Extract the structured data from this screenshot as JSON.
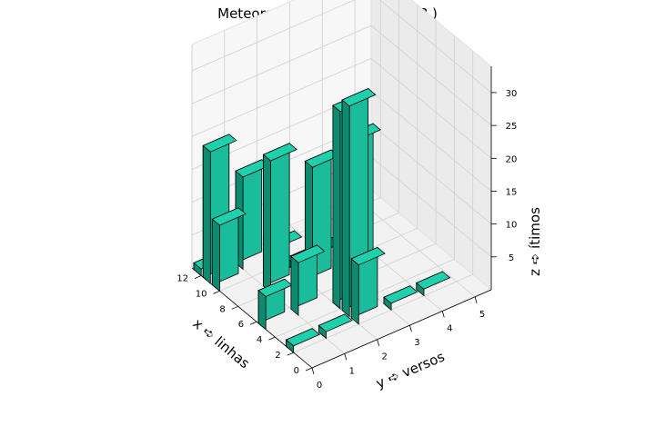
{
  "chart_data": {
    "type": "bar3d",
    "title": "Meteoro ➪ 13 ➪ 282 ( 43 / 348 )",
    "xlabel": "x ➪ linhas",
    "ylabel": "y ➪ versos",
    "zlabel": "z ➪ ítimos",
    "x_ticks": [
      "0",
      "2",
      "4",
      "6",
      "8",
      "10",
      "12"
    ],
    "y_ticks": [
      "0",
      "1",
      "2",
      "3",
      "4",
      "5"
    ],
    "z_ticks": [
      "5",
      "10",
      "15",
      "20",
      "25",
      "30"
    ],
    "xlim": [
      0,
      13
    ],
    "ylim": [
      0,
      5.5
    ],
    "zlim": [
      0,
      34
    ],
    "grid": true,
    "bar_color": "#1abc9c",
    "edge_color": "#000000",
    "bars": [
      {
        "x": 2,
        "y": 0,
        "z": 1
      },
      {
        "x": 2,
        "y": 1,
        "z": 1
      },
      {
        "x": 2,
        "y": 2,
        "z": 9
      },
      {
        "x": 2,
        "y": 3,
        "z": 1
      },
      {
        "x": 2,
        "y": 4,
        "z": 1
      },
      {
        "x": 3,
        "y": 2,
        "z": 32
      },
      {
        "x": 4,
        "y": 2,
        "z": 30
      },
      {
        "x": 5,
        "y": 0,
        "z": 5
      },
      {
        "x": 5,
        "y": 1,
        "z": 8
      },
      {
        "x": 6,
        "y": 3,
        "z": 21
      },
      {
        "x": 7,
        "y": 2,
        "z": 18
      },
      {
        "x": 7,
        "y": 3,
        "z": 13
      },
      {
        "x": 8,
        "y": 1,
        "z": 20
      },
      {
        "x": 8,
        "y": 2,
        "z": 1
      },
      {
        "x": 9,
        "y": 2,
        "z": 1
      },
      {
        "x": 9,
        "y": 3,
        "z": 1
      },
      {
        "x": 10,
        "y": 0,
        "z": 10
      },
      {
        "x": 11,
        "y": 0,
        "z": 20
      },
      {
        "x": 11,
        "y": 1,
        "z": 14
      },
      {
        "x": 11,
        "y": 2,
        "z": 1
      },
      {
        "x": 11,
        "y": 4,
        "z": 15
      },
      {
        "x": 12,
        "y": 0,
        "z": 1
      },
      {
        "x": 12,
        "y": 1,
        "z": 1
      }
    ]
  }
}
